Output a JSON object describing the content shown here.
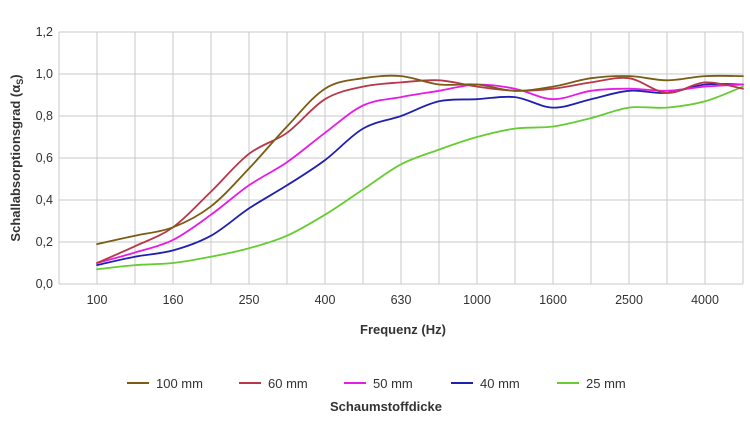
{
  "chart_data": {
    "type": "line",
    "title": "",
    "xlabel": "Frequenz (Hz)",
    "ylabel": "Schallabsorptionsgrad (α",
    "ylabel_sub": "S",
    "ylabel_end": ")",
    "legend_title": "Schaumstoffdicke",
    "legend_position": "bottom",
    "grid": true,
    "ylim": [
      0,
      1.2
    ],
    "y_ticks": [
      "0,0",
      "0,2",
      "0,4",
      "0,6",
      "0,8",
      "1,0",
      "1,2"
    ],
    "y_tick_values": [
      0,
      0.2,
      0.4,
      0.6,
      0.8,
      1.0,
      1.2
    ],
    "x": [
      "100",
      "125",
      "160",
      "200",
      "250",
      "315",
      "400",
      "500",
      "630",
      "800",
      "1000",
      "1250",
      "1600",
      "2000",
      "2500",
      "3150",
      "4000",
      "5000"
    ],
    "x_tick_labels": [
      "100",
      "160",
      "250",
      "400",
      "630",
      "1000",
      "1600",
      "2500",
      "4000"
    ],
    "series": [
      {
        "name": "100 mm",
        "color": "#7a5c14",
        "values": [
          0.19,
          0.23,
          0.27,
          0.37,
          0.55,
          0.75,
          0.93,
          0.98,
          0.99,
          0.95,
          0.95,
          0.92,
          0.94,
          0.98,
          0.99,
          0.97,
          0.99,
          0.99
        ]
      },
      {
        "name": "60 mm",
        "color": "#b8374a",
        "values": [
          0.1,
          0.18,
          0.27,
          0.44,
          0.62,
          0.72,
          0.88,
          0.94,
          0.96,
          0.97,
          0.94,
          0.92,
          0.93,
          0.96,
          0.98,
          0.91,
          0.96,
          0.93
        ]
      },
      {
        "name": "50 mm",
        "color": "#e61ce6",
        "values": [
          0.1,
          0.15,
          0.21,
          0.33,
          0.47,
          0.58,
          0.72,
          0.85,
          0.89,
          0.92,
          0.95,
          0.93,
          0.88,
          0.92,
          0.93,
          0.92,
          0.94,
          0.95
        ]
      },
      {
        "name": "40 mm",
        "color": "#2020b0",
        "values": [
          0.09,
          0.13,
          0.16,
          0.23,
          0.36,
          0.47,
          0.59,
          0.74,
          0.8,
          0.87,
          0.88,
          0.89,
          0.84,
          0.88,
          0.92,
          0.91,
          0.95,
          0.95
        ]
      },
      {
        "name": "25 mm",
        "color": "#66cc33",
        "values": [
          0.07,
          0.09,
          0.1,
          0.13,
          0.17,
          0.23,
          0.33,
          0.45,
          0.57,
          0.64,
          0.7,
          0.74,
          0.75,
          0.79,
          0.84,
          0.84,
          0.87,
          0.94
        ]
      }
    ]
  }
}
